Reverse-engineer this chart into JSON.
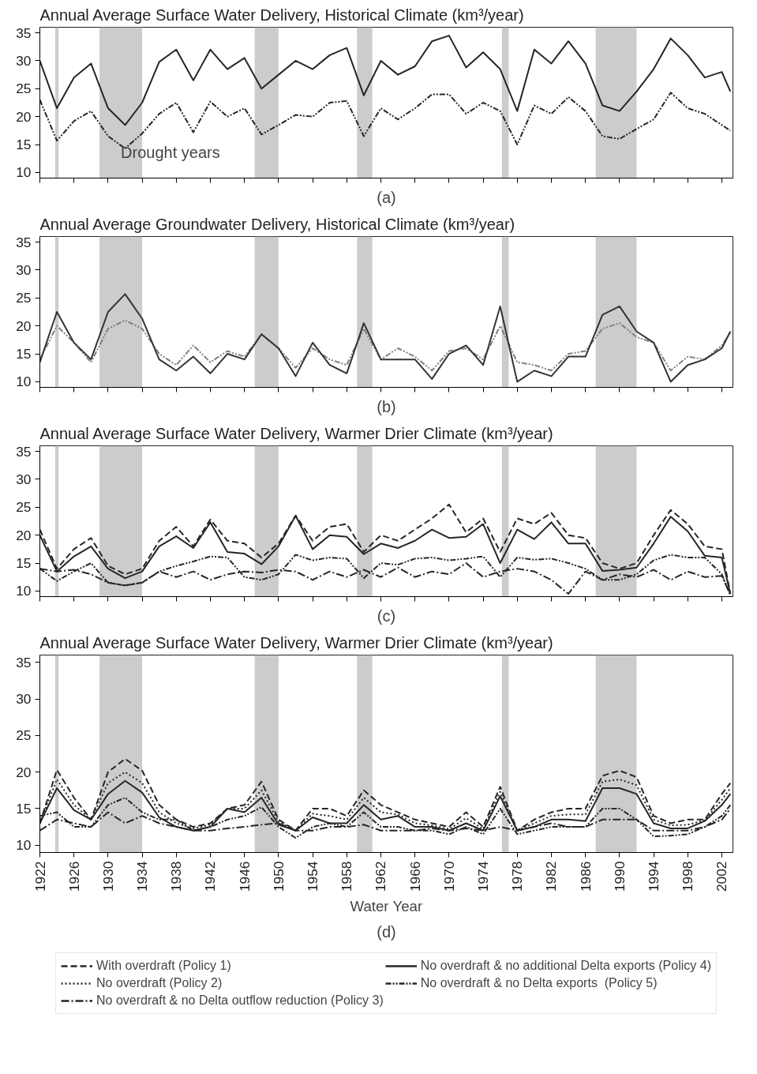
{
  "chart_data": [
    {
      "type": "line",
      "title": "Annual Average Surface Water Delivery, Historical Climate (km³/year)",
      "annotations": [
        "Drought years",
        "(a)"
      ],
      "x": [
        1922,
        1924,
        1926,
        1928,
        1930,
        1932,
        1934,
        1936,
        1938,
        1940,
        1942,
        1944,
        1946,
        1948,
        1950,
        1952,
        1954,
        1956,
        1958,
        1960,
        1962,
        1964,
        1966,
        1968,
        1970,
        1972,
        1974,
        1976,
        1978,
        1980,
        1982,
        1984,
        1986,
        1988,
        1990,
        1992,
        1994,
        1996,
        1998,
        2000,
        2002,
        2003
      ],
      "xlim": [
        1922,
        2003.3
      ],
      "xticks": [
        1922,
        1926,
        1930,
        1934,
        1938,
        1942,
        1946,
        1950,
        1954,
        1958,
        1962,
        1966,
        1970,
        1974,
        1978,
        1982,
        1986,
        1990,
        1994,
        1998,
        2002
      ],
      "ylim": [
        9,
        36
      ],
      "yticks": [
        10,
        15,
        20,
        25,
        30,
        35
      ],
      "tick_labels": "y",
      "bands": [
        {
          "axis": "x",
          "from": 1923.8,
          "to": 1924.2,
          "color": "#cccccc"
        },
        {
          "axis": "x",
          "from": 1929,
          "to": 1934,
          "color": "#cccccc"
        },
        {
          "axis": "x",
          "from": 1947.2,
          "to": 1950,
          "color": "#cccccc"
        },
        {
          "axis": "x",
          "from": 1959.2,
          "to": 1961,
          "color": "#cccccc"
        },
        {
          "axis": "x",
          "from": 1976.2,
          "to": 1977,
          "color": "#cccccc"
        },
        {
          "axis": "x",
          "from": 1987.2,
          "to": 1992,
          "color": "#cccccc"
        }
      ],
      "series": [
        {
          "color": "#262626",
          "line_style": "solid",
          "values": [
            30,
            21.5,
            27,
            29.5,
            21.5,
            18.5,
            22.5,
            29.8,
            32,
            26.5,
            32,
            28.5,
            30.5,
            25,
            27.5,
            30,
            28.5,
            31,
            32.3,
            23.8,
            30,
            27.5,
            29,
            33.5,
            34.5,
            28.8,
            31.5,
            28.5,
            21,
            32,
            29.5,
            33.5,
            29.5,
            22,
            21,
            24.5,
            28.5,
            34,
            31,
            27,
            28,
            24.5
          ]
        },
        {
          "color": "#262626",
          "line_style": "dashdotdot",
          "values": [
            23,
            15.7,
            19.2,
            21,
            16.5,
            14.3,
            17,
            20.5,
            22.5,
            17.2,
            22.7,
            20,
            21.5,
            16.8,
            18.5,
            20.3,
            20,
            22.5,
            22.8,
            16.5,
            21.5,
            19.5,
            21.5,
            24,
            24,
            20.5,
            22.5,
            21,
            15,
            22,
            20.5,
            23.5,
            21,
            16.5,
            16,
            17.8,
            19.5,
            24.3,
            21.5,
            20.5,
            18.5,
            17.5
          ]
        }
      ]
    },
    {
      "type": "line",
      "title": "Annual Average Groundwater Delivery, Historical Climate (km³/year)",
      "annotations": [
        "(b)"
      ],
      "x": [
        1922,
        1924,
        1926,
        1928,
        1930,
        1932,
        1934,
        1936,
        1938,
        1940,
        1942,
        1944,
        1946,
        1948,
        1950,
        1952,
        1954,
        1956,
        1958,
        1960,
        1962,
        1964,
        1966,
        1968,
        1970,
        1972,
        1974,
        1976,
        1978,
        1980,
        1982,
        1984,
        1986,
        1988,
        1990,
        1992,
        1994,
        1996,
        1998,
        2000,
        2002,
        2003
      ],
      "xlim": [
        1922,
        2003.3
      ],
      "xticks": [
        1922,
        1926,
        1930,
        1934,
        1938,
        1942,
        1946,
        1950,
        1954,
        1958,
        1962,
        1966,
        1970,
        1974,
        1978,
        1982,
        1986,
        1990,
        1994,
        1998,
        2002
      ],
      "ylim": [
        9,
        36
      ],
      "yticks": [
        10,
        15,
        20,
        25,
        30,
        35
      ],
      "tick_labels": "y",
      "bands": [
        {
          "axis": "x",
          "from": 1923.8,
          "to": 1924.2,
          "color": "#cccccc"
        },
        {
          "axis": "x",
          "from": 1929,
          "to": 1934,
          "color": "#cccccc"
        },
        {
          "axis": "x",
          "from": 1947.2,
          "to": 1950,
          "color": "#cccccc"
        },
        {
          "axis": "x",
          "from": 1959.2,
          "to": 1961,
          "color": "#cccccc"
        },
        {
          "axis": "x",
          "from": 1976.2,
          "to": 1977,
          "color": "#cccccc"
        },
        {
          "axis": "x",
          "from": 1987.2,
          "to": 1992,
          "color": "#cccccc"
        }
      ],
      "series": [
        {
          "color": "#808080",
          "line_style": "dashdotdot",
          "values": [
            14,
            20,
            17,
            13.5,
            19.5,
            21,
            19.5,
            15,
            13,
            16.5,
            13.5,
            15.5,
            14.5,
            18.5,
            16,
            12.5,
            16,
            14,
            13,
            19.5,
            14,
            16,
            14.5,
            12,
            15.5,
            16,
            14,
            20,
            13.5,
            13,
            12,
            15,
            15.5,
            19.5,
            20.5,
            18,
            17,
            12,
            14.5,
            14,
            16.5,
            18.8
          ]
        },
        {
          "color": "#333333",
          "line_style": "solid",
          "values": [
            13.5,
            22.5,
            17,
            14,
            22.5,
            25.7,
            21.3,
            14,
            12,
            14.5,
            11.5,
            15,
            14,
            18.5,
            16,
            11,
            17,
            13,
            11.5,
            20.5,
            14,
            14,
            14,
            10.5,
            15,
            16.5,
            13,
            23.5,
            10,
            12,
            11,
            14.5,
            14.5,
            22,
            23.5,
            19,
            17,
            10,
            13,
            14,
            16,
            19
          ]
        }
      ]
    },
    {
      "type": "line",
      "title": "Annual Average Surface Water Delivery, Warmer Drier Climate (km³/year)",
      "annotations": [
        "(c)"
      ],
      "x": [
        1922,
        1924,
        1926,
        1928,
        1930,
        1932,
        1934,
        1936,
        1938,
        1940,
        1942,
        1944,
        1946,
        1948,
        1950,
        1952,
        1954,
        1956,
        1958,
        1960,
        1962,
        1964,
        1966,
        1968,
        1970,
        1972,
        1974,
        1976,
        1978,
        1980,
        1982,
        1984,
        1986,
        1988,
        1990,
        1992,
        1994,
        1996,
        1998,
        2000,
        2002,
        2003
      ],
      "xlim": [
        1922,
        2003.3
      ],
      "xticks": [
        1922,
        1926,
        1930,
        1934,
        1938,
        1942,
        1946,
        1950,
        1954,
        1958,
        1962,
        1966,
        1970,
        1974,
        1978,
        1982,
        1986,
        1990,
        1994,
        1998,
        2002
      ],
      "ylim": [
        9,
        36
      ],
      "yticks": [
        10,
        15,
        20,
        25,
        30,
        35
      ],
      "tick_labels": "y",
      "bands": [
        {
          "axis": "x",
          "from": 1923.8,
          "to": 1924.2,
          "color": "#cccccc"
        },
        {
          "axis": "x",
          "from": 1929,
          "to": 1934,
          "color": "#cccccc"
        },
        {
          "axis": "x",
          "from": 1947.2,
          "to": 1950,
          "color": "#cccccc"
        },
        {
          "axis": "x",
          "from": 1959.2,
          "to": 1961,
          "color": "#cccccc"
        },
        {
          "axis": "x",
          "from": 1976.2,
          "to": 1977,
          "color": "#cccccc"
        },
        {
          "axis": "x",
          "from": 1987.2,
          "to": 1992,
          "color": "#cccccc"
        }
      ],
      "series": [
        {
          "color": "#262626",
          "line_style": "dashed",
          "values": [
            21,
            14,
            17.5,
            19.5,
            14.5,
            13,
            14,
            19,
            21.5,
            18,
            22.8,
            19,
            18.5,
            16,
            18.5,
            23.5,
            19,
            21.5,
            22,
            17,
            20,
            19,
            21,
            23,
            25.5,
            20.5,
            23,
            17,
            23,
            22,
            24,
            20,
            19.5,
            15,
            14,
            15,
            20,
            24.5,
            22,
            18,
            17.5,
            9.5
          ]
        },
        {
          "color": "#262626",
          "line_style": "solid",
          "values": [
            20,
            13.5,
            16.2,
            18,
            14,
            12.3,
            13.5,
            18,
            19.8,
            17.7,
            22.3,
            17,
            16.7,
            14.8,
            18,
            23.5,
            17.5,
            20,
            19.7,
            16.6,
            18.5,
            17.7,
            19,
            21,
            19.5,
            19.7,
            22,
            15,
            21,
            19.3,
            22.3,
            18.5,
            18.5,
            13.6,
            13.8,
            14.2,
            18.5,
            23.3,
            20.7,
            16.3,
            16,
            9.5
          ]
        },
        {
          "color": "#262626",
          "line_style": "dashdotdot",
          "values": [
            14,
            11.8,
            13.5,
            15,
            11.5,
            11,
            11.5,
            13.5,
            14.5,
            15.3,
            16.2,
            16,
            12.5,
            12,
            13,
            16.5,
            15.5,
            16,
            15.8,
            12.3,
            15,
            14.7,
            15.8,
            16,
            15.5,
            15.8,
            16.2,
            12.5,
            16,
            15.6,
            15.8,
            15,
            14,
            12,
            12,
            13,
            15.5,
            16.5,
            16,
            16,
            13,
            9.3
          ]
        },
        {
          "color": "#262626",
          "line_style": "dashdot",
          "values": [
            14,
            13.5,
            13.8,
            13,
            11.5,
            11,
            11.5,
            13.5,
            12.5,
            13.5,
            12,
            13,
            13.5,
            13.3,
            13.8,
            13.5,
            12,
            13.5,
            12.5,
            13.8,
            12.5,
            14.2,
            12.5,
            13.5,
            13,
            15,
            12.5,
            13.5,
            14,
            13.5,
            12,
            9.5,
            13.5,
            12,
            13,
            12.5,
            13.8,
            12,
            13.5,
            12.5,
            12.7,
            9.3
          ]
        }
      ]
    },
    {
      "type": "line",
      "title": "Annual Average Surface Water Delivery, Warmer Drier Climate (km³/year)",
      "xlabel": "Water Year",
      "annotations": [
        "(d)"
      ],
      "legend": "bottom",
      "x": [
        1922,
        1924,
        1926,
        1928,
        1930,
        1932,
        1934,
        1936,
        1938,
        1940,
        1942,
        1944,
        1946,
        1948,
        1950,
        1952,
        1954,
        1956,
        1958,
        1960,
        1962,
        1964,
        1966,
        1968,
        1970,
        1972,
        1974,
        1976,
        1978,
        1980,
        1982,
        1984,
        1986,
        1988,
        1990,
        1992,
        1994,
        1996,
        1998,
        2000,
        2002,
        2003
      ],
      "xlim": [
        1922,
        2003.3
      ],
      "xticks": [
        1922,
        1926,
        1930,
        1934,
        1938,
        1942,
        1946,
        1950,
        1954,
        1958,
        1962,
        1966,
        1970,
        1974,
        1978,
        1982,
        1986,
        1990,
        1994,
        1998,
        2002
      ],
      "ylim": [
        9,
        36
      ],
      "yticks": [
        10,
        15,
        20,
        25,
        30,
        35
      ],
      "bands": [
        {
          "axis": "x",
          "from": 1923.8,
          "to": 1924.2,
          "color": "#cccccc"
        },
        {
          "axis": "x",
          "from": 1929,
          "to": 1934,
          "color": "#cccccc"
        },
        {
          "axis": "x",
          "from": 1947.2,
          "to": 1950,
          "color": "#cccccc"
        },
        {
          "axis": "x",
          "from": 1959.2,
          "to": 1961,
          "color": "#cccccc"
        },
        {
          "axis": "x",
          "from": 1976.2,
          "to": 1977,
          "color": "#cccccc"
        },
        {
          "axis": "x",
          "from": 1987.2,
          "to": 1992,
          "color": "#cccccc"
        }
      ],
      "series": [
        {
          "name": "With overdraft (Policy 1)",
          "color": "#262626",
          "line_style": "dashed",
          "values": [
            13,
            20.3,
            16.5,
            13.5,
            20,
            21.8,
            20.2,
            15.5,
            13.5,
            12.5,
            13,
            15,
            15.5,
            18.7,
            13.5,
            12,
            15,
            15,
            14,
            17.5,
            15.5,
            14.5,
            13.5,
            13,
            12.5,
            14.5,
            12.5,
            18,
            12,
            13.5,
            14.5,
            15,
            15,
            19.5,
            20.2,
            19.3,
            14,
            13,
            13.5,
            13.5,
            17,
            18.5
          ]
        },
        {
          "name": "No overdraft (Policy 2)",
          "color": "#262626",
          "line_style": "dotted",
          "values": [
            13,
            19,
            15.5,
            13.5,
            18.5,
            20,
            18.5,
            14.5,
            13,
            12.3,
            12.8,
            15,
            15,
            17.5,
            13.2,
            12,
            14.3,
            14,
            13.5,
            16.5,
            14.5,
            14.2,
            13,
            12.7,
            12.2,
            13.7,
            12.2,
            17.3,
            12,
            13,
            14,
            14.2,
            14.2,
            18.7,
            19,
            18.2,
            13.5,
            12.7,
            12.8,
            13.4,
            16.2,
            17.8
          ]
        },
        {
          "name": "No overdraft & no Delta outflow reduction (Policy 3)",
          "color": "#262626",
          "line_style": "dashdot",
          "values": [
            12,
            13.5,
            13,
            12.5,
            14.5,
            13,
            14,
            13,
            12.5,
            12,
            12,
            12.3,
            12.5,
            12.8,
            13,
            12,
            12,
            12.5,
            12.5,
            12.8,
            12,
            12,
            12,
            12.3,
            12,
            12.3,
            12,
            12.5,
            12,
            12.5,
            13,
            12.5,
            12.5,
            13.5,
            13.5,
            13.5,
            12,
            12,
            12,
            12.5,
            13.5,
            15
          ]
        },
        {
          "name": "No overdraft & no additional Delta exports (Policy 4)",
          "color": "#262626",
          "line_style": "solid",
          "values": [
            13,
            17.8,
            14.8,
            13.5,
            17,
            18.8,
            17.2,
            13.8,
            12.5,
            12,
            12.5,
            15,
            14.5,
            16.5,
            12.8,
            12,
            13.8,
            13,
            13,
            15.5,
            13.5,
            14,
            12.5,
            12.5,
            12,
            13,
            12,
            16.7,
            12,
            12.5,
            13.5,
            13.5,
            13.3,
            17.8,
            17.8,
            17,
            13,
            12.3,
            12.3,
            13.3,
            15.5,
            17
          ]
        },
        {
          "name": "No overdraft & no Delta exports  (Policy 5)",
          "color": "#262626",
          "line_style": "dashdotdot",
          "values": [
            14,
            14.5,
            12.5,
            12.5,
            15.5,
            16.5,
            14.5,
            13.5,
            13.5,
            12,
            12.5,
            13.5,
            14,
            15.2,
            12.5,
            11,
            12.5,
            13,
            12.5,
            14.5,
            12.5,
            12.5,
            12,
            12,
            11.5,
            12.5,
            11.5,
            15,
            11.5,
            12,
            12.5,
            12.5,
            12.5,
            15,
            15,
            13.5,
            11.2,
            11.3,
            11.5,
            12.5,
            14,
            15.5
          ]
        }
      ]
    }
  ]
}
